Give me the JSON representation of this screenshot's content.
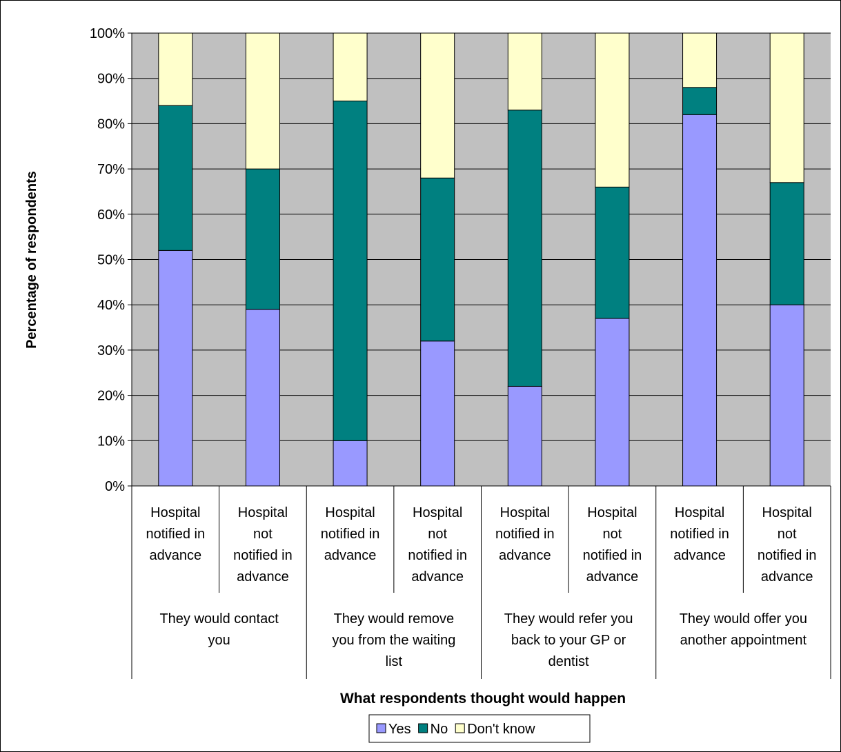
{
  "chart_data": {
    "type": "bar",
    "stacked": true,
    "percent_stacked": true,
    "title": "",
    "xlabel": "What respondents thought would happen",
    "ylabel": "Percentage of respondents",
    "ylim": [
      0,
      100
    ],
    "yticks": [
      "0%",
      "10%",
      "20%",
      "30%",
      "40%",
      "50%",
      "60%",
      "70%",
      "80%",
      "90%",
      "100%"
    ],
    "grid": true,
    "legend_position": "bottom",
    "categories": [
      "Hospital notified in advance",
      "Hospital not notified in advance",
      "Hospital notified in advance",
      "Hospital not notified in advance",
      "Hospital notified in advance",
      "Hospital not notified in advance",
      "Hospital notified in advance",
      "Hospital not notified in advance"
    ],
    "category_lines": [
      [
        "Hospital",
        "notified in",
        "advance"
      ],
      [
        "Hospital",
        "not",
        "notified in",
        "advance"
      ],
      [
        "Hospital",
        "notified in",
        "advance"
      ],
      [
        "Hospital",
        "not",
        "notified in",
        "advance"
      ],
      [
        "Hospital",
        "notified in",
        "advance"
      ],
      [
        "Hospital",
        "not",
        "notified in",
        "advance"
      ],
      [
        "Hospital",
        "notified in",
        "advance"
      ],
      [
        "Hospital",
        "not",
        "notified in",
        "advance"
      ]
    ],
    "groups": [
      {
        "label": "They would contact you",
        "lines": [
          "They would contact",
          "you"
        ]
      },
      {
        "label": "They would remove you from the waiting list",
        "lines": [
          "They would remove",
          "you from the waiting",
          "list"
        ]
      },
      {
        "label": "They would refer you back to your GP or dentist",
        "lines": [
          "They would refer you",
          "back to your GP or",
          "dentist"
        ]
      },
      {
        "label": "They would offer you another appointment",
        "lines": [
          "They would offer you",
          "another appointment"
        ]
      }
    ],
    "series": [
      {
        "name": "Yes",
        "color": "#9999ff",
        "values": [
          52,
          39,
          10,
          32,
          22,
          37,
          82,
          40
        ]
      },
      {
        "name": "No",
        "color": "#008080",
        "values": [
          32,
          31,
          75,
          36,
          61,
          29,
          6,
          27
        ]
      },
      {
        "name": "Don't know",
        "color": "#ffffcc",
        "values": [
          16,
          30,
          15,
          32,
          17,
          34,
          12,
          33
        ]
      }
    ],
    "colors": {
      "plot_background": "#c0c0c0",
      "bar_border": "#000000"
    }
  }
}
